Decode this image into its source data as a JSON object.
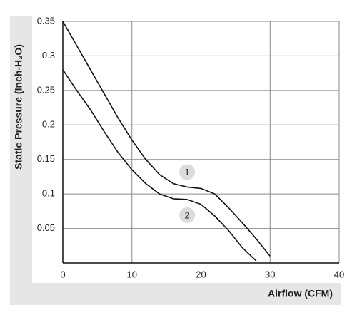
{
  "chart_data": {
    "type": "line",
    "xlabel": "Airflow (CFM)",
    "ylabel": "Static Pressure (Inch-H₂O)",
    "xlim": [
      0,
      40
    ],
    "xticks": [
      0,
      10,
      20,
      30,
      40
    ],
    "ylim": [
      0,
      0.35
    ],
    "yticks": [
      0.05,
      0.1,
      0.15,
      0.2,
      0.25,
      0.3,
      0.35
    ],
    "grid": true,
    "x": [
      0,
      2,
      4,
      6,
      8,
      10,
      12,
      14,
      16,
      18,
      20,
      22,
      24,
      26,
      28,
      30
    ],
    "series": [
      {
        "name": "1",
        "color": "#111111",
        "values": [
          0.35,
          0.315,
          0.28,
          0.245,
          0.21,
          0.178,
          0.15,
          0.128,
          0.115,
          0.11,
          0.108,
          0.1,
          0.08,
          0.058,
          0.035,
          0.01
        ]
      },
      {
        "name": "2",
        "color": "#111111",
        "values": [
          0.28,
          0.25,
          0.222,
          0.19,
          0.16,
          0.135,
          0.115,
          0.1,
          0.093,
          0.092,
          0.085,
          0.068,
          0.047,
          0.022,
          0.003,
          null
        ]
      }
    ]
  }
}
